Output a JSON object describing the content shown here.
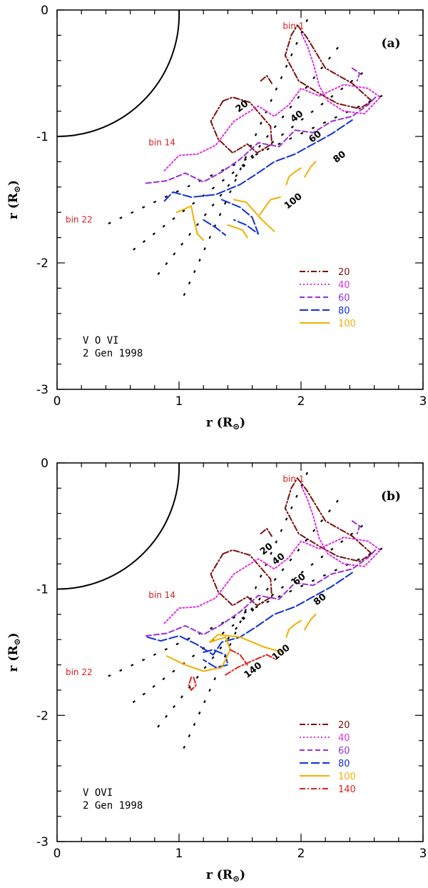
{
  "chart_data": [
    {
      "type": "line",
      "panel_label": "(a)",
      "xlabel": "r (R",
      "ylabel": "r (R",
      "label_sub": "⊙",
      "xlim": [
        0,
        3
      ],
      "ylim": [
        -3,
        0
      ],
      "xticks": [
        "0",
        "1",
        "2",
        "3"
      ],
      "yticks": [
        "0",
        "-1",
        "-2",
        "-3"
      ],
      "annotation": [
        "V O VI",
        "2 Gen 1998"
      ],
      "bin_labels": [
        {
          "text": "bin 1",
          "x": 1.85,
          "y": -0.15
        },
        {
          "text": "bin 14",
          "x": 0.75,
          "y": -1.07
        },
        {
          "text": "bin 22",
          "x": 0.07,
          "y": -1.68
        }
      ],
      "contour_labels": [
        {
          "text": "20",
          "x": 1.53,
          "y": -0.78
        },
        {
          "text": "40",
          "x": 1.98,
          "y": -0.86
        },
        {
          "text": "60",
          "x": 2.13,
          "y": -1.02
        },
        {
          "text": "80",
          "x": 2.33,
          "y": -1.18
        },
        {
          "text": "100",
          "x": 1.95,
          "y": -1.53
        }
      ],
      "series": [
        {
          "name": "20",
          "color": "#7a1010",
          "dash": "8 3 2 3",
          "x": [
            1.97,
            2.05,
            2.2,
            2.42,
            2.58,
            2.48,
            2.3,
            2.15,
            1.98,
            1.87,
            1.92,
            1.97
          ],
          "y": [
            -0.12,
            -0.22,
            -0.46,
            -0.58,
            -0.72,
            -0.78,
            -0.74,
            -0.66,
            -0.56,
            -0.36,
            -0.2,
            -0.12
          ]
        },
        {
          "name": "20",
          "color": "#7a1010",
          "dash": "8 3 2 3",
          "x": [
            1.36,
            1.44,
            1.58,
            1.75,
            1.76,
            1.64,
            1.56,
            1.44,
            1.32,
            1.26,
            1.36
          ],
          "y": [
            -0.72,
            -0.69,
            -0.73,
            -0.92,
            -1.06,
            -1.13,
            -1.06,
            -1.13,
            -1.02,
            -0.88,
            -0.72
          ]
        },
        {
          "name": "20",
          "color": "#7a1010",
          "dash": "8 3 2 3",
          "x": [
            1.67,
            1.72,
            1.76
          ],
          "y": [
            -0.56,
            -0.52,
            -0.58
          ]
        },
        {
          "name": "40",
          "color": "#e030e0",
          "dash": "2 3",
          "x": [
            0.88,
            1.0,
            1.15,
            1.3,
            1.45,
            1.65,
            1.78,
            1.9,
            2.0,
            2.15,
            2.35,
            2.55,
            2.65,
            2.52,
            2.35,
            2.22,
            2.15,
            2.1,
            2.05,
            2.0
          ],
          "y": [
            -1.27,
            -1.15,
            -1.14,
            -1.07,
            -0.88,
            -0.76,
            -0.84,
            -0.75,
            -0.62,
            -0.68,
            -0.59,
            -0.62,
            -0.69,
            -0.82,
            -0.8,
            -0.72,
            -0.6,
            -0.42,
            -0.28,
            -0.18
          ]
        },
        {
          "name": "60",
          "color": "#9a30d8",
          "dash": "7 4",
          "x": [
            0.73,
            0.9,
            1.05,
            1.2,
            1.35,
            1.5,
            1.65,
            1.82,
            1.95,
            2.1,
            2.25,
            2.42,
            2.55,
            2.62
          ],
          "y": [
            -1.37,
            -1.35,
            -1.29,
            -1.36,
            -1.28,
            -1.18,
            -1.05,
            -1.08,
            -0.95,
            -0.97,
            -0.88,
            -0.84,
            -0.75,
            -0.68
          ]
        },
        {
          "name": "60",
          "color": "#9a30d8",
          "dash": "7 4",
          "x": [
            2.42,
            2.48,
            2.46
          ],
          "y": [
            -0.46,
            -0.5,
            -0.56
          ]
        },
        {
          "name": "80",
          "color": "#1030d8",
          "dash": "12 4",
          "x": [
            0.88,
            0.95,
            1.1,
            1.3,
            1.5,
            1.63,
            1.78,
            1.95,
            2.1,
            2.25,
            2.42
          ],
          "y": [
            -1.51,
            -1.44,
            -1.48,
            -1.46,
            -1.38,
            -1.3,
            -1.2,
            -1.14,
            -1.06,
            -0.98,
            -0.87
          ]
        },
        {
          "name": "80",
          "color": "#1030d8",
          "dash": "12 4",
          "x": [
            1.35,
            1.5,
            1.6,
            1.65,
            1.55,
            1.45
          ],
          "y": [
            -1.5,
            -1.56,
            -1.64,
            -1.77,
            -1.7,
            -1.66
          ]
        },
        {
          "name": "80",
          "color": "#1030d8",
          "dash": "12 4",
          "x": [
            1.2,
            1.3,
            1.38
          ],
          "y": [
            -1.66,
            -1.72,
            -1.78
          ]
        },
        {
          "name": "100",
          "color": "#f0b000",
          "dash": "",
          "x": [
            0.98,
            1.1,
            1.12,
            1.15,
            1.2
          ],
          "y": [
            -1.6,
            -1.55,
            -1.65,
            -1.77,
            -1.82
          ]
        },
        {
          "name": "100",
          "color": "#f0b000",
          "dash": "",
          "x": [
            1.45,
            1.55,
            1.68,
            1.78
          ],
          "y": [
            -1.5,
            -1.52,
            -1.66,
            -1.75
          ]
        },
        {
          "name": "100",
          "color": "#f0b000",
          "dash": "",
          "x": [
            1.66,
            1.75,
            1.83
          ],
          "y": [
            -1.62,
            -1.5,
            -1.48
          ]
        },
        {
          "name": "100",
          "color": "#f0b000",
          "dash": "",
          "x": [
            1.4,
            1.52,
            1.56
          ],
          "y": [
            -1.7,
            -1.74,
            -1.8
          ]
        },
        {
          "name": "100",
          "color": "#f0b000",
          "dash": "",
          "x": [
            1.88,
            1.9,
            1.95,
            2.0
          ],
          "y": [
            -1.38,
            -1.32,
            -1.28,
            -1.25
          ]
        },
        {
          "name": "100",
          "color": "#f0b000",
          "dash": "",
          "x": [
            2.03,
            2.08,
            2.12
          ],
          "y": [
            -1.32,
            -1.24,
            -1.2
          ]
        }
      ],
      "grid_lines": [
        {
          "x0": 2.05,
          "y0": -0.08,
          "x1": 1.02,
          "y1": -2.3
        },
        {
          "x0": 2.3,
          "y0": -0.3,
          "x1": 0.82,
          "y1": -2.1
        },
        {
          "x0": 2.5,
          "y0": -0.5,
          "x1": 0.62,
          "y1": -1.9
        },
        {
          "x0": 2.66,
          "y0": -0.68,
          "x1": 0.42,
          "y1": -1.69
        }
      ],
      "legend": [
        {
          "label": "20",
          "color": "#7a1010",
          "dash": "8 3 2 3"
        },
        {
          "label": "40",
          "color": "#e030e0",
          "dash": "2 3"
        },
        {
          "label": "60",
          "color": "#9a30d8",
          "dash": "7 4"
        },
        {
          "label": "80",
          "color": "#1030d8",
          "dash": "12 4"
        },
        {
          "label": "100",
          "color": "#f0b000",
          "dash": ""
        }
      ]
    },
    {
      "type": "line",
      "panel_label": "(b)",
      "xlabel": "r (R",
      "ylabel": "r (R",
      "label_sub": "⊙",
      "xlim": [
        0,
        3
      ],
      "ylim": [
        -3,
        0
      ],
      "xticks": [
        "0",
        "1",
        "2",
        "3"
      ],
      "yticks": [
        "0",
        "-1",
        "-2",
        "-3"
      ],
      "annotation": [
        "V OVI",
        "2 Gen 1998"
      ],
      "bin_labels": [
        {
          "text": "bin 1",
          "x": 1.85,
          "y": -0.15
        },
        {
          "text": "bin 14",
          "x": 0.75,
          "y": -1.07
        },
        {
          "text": "bin 22",
          "x": 0.07,
          "y": -1.68
        }
      ],
      "contour_labels": [
        {
          "text": "20",
          "x": 1.73,
          "y": -0.7
        },
        {
          "text": "40",
          "x": 1.83,
          "y": -0.78
        },
        {
          "text": "60",
          "x": 2.0,
          "y": -0.94
        },
        {
          "text": "80",
          "x": 2.17,
          "y": -1.1
        },
        {
          "text": "100",
          "x": 1.85,
          "y": -1.52
        },
        {
          "text": "140",
          "x": 1.62,
          "y": -1.66
        }
      ],
      "series": [
        {
          "name": "20",
          "color": "#7a1010",
          "dash": "8 3 2 3",
          "x": [
            1.97,
            2.05,
            2.2,
            2.42,
            2.58,
            2.48,
            2.3,
            2.15,
            1.98,
            1.87,
            1.92,
            1.97
          ],
          "y": [
            -0.12,
            -0.22,
            -0.46,
            -0.58,
            -0.72,
            -0.78,
            -0.74,
            -0.66,
            -0.56,
            -0.36,
            -0.2,
            -0.12
          ]
        },
        {
          "name": "20",
          "color": "#7a1010",
          "dash": "8 3 2 3",
          "x": [
            1.36,
            1.44,
            1.58,
            1.75,
            1.76,
            1.64,
            1.56,
            1.44,
            1.32,
            1.26,
            1.36
          ],
          "y": [
            -0.72,
            -0.69,
            -0.73,
            -0.92,
            -1.06,
            -1.13,
            -1.06,
            -1.13,
            -1.02,
            -0.88,
            -0.72
          ]
        },
        {
          "name": "20",
          "color": "#7a1010",
          "dash": "8 3 2 3",
          "x": [
            1.67,
            1.72,
            1.76
          ],
          "y": [
            -0.56,
            -0.52,
            -0.58
          ]
        },
        {
          "name": "40",
          "color": "#e030e0",
          "dash": "2 3",
          "x": [
            0.88,
            1.0,
            1.15,
            1.3,
            1.45,
            1.65,
            1.78,
            1.9,
            2.0,
            2.15,
            2.35,
            2.55,
            2.65,
            2.52,
            2.35,
            2.22,
            2.15,
            2.1,
            2.05,
            2.0
          ],
          "y": [
            -1.27,
            -1.15,
            -1.14,
            -1.07,
            -0.88,
            -0.76,
            -0.84,
            -0.75,
            -0.62,
            -0.68,
            -0.59,
            -0.62,
            -0.69,
            -0.82,
            -0.8,
            -0.72,
            -0.6,
            -0.42,
            -0.28,
            -0.18
          ]
        },
        {
          "name": "60",
          "color": "#9a30d8",
          "dash": "7 4",
          "x": [
            0.73,
            0.9,
            1.05,
            1.2,
            1.35,
            1.5,
            1.65,
            1.82,
            1.95,
            2.1,
            2.25,
            2.42,
            2.55,
            2.62
          ],
          "y": [
            -1.37,
            -1.35,
            -1.29,
            -1.36,
            -1.28,
            -1.18,
            -1.05,
            -1.08,
            -0.95,
            -0.97,
            -0.88,
            -0.84,
            -0.75,
            -0.68
          ]
        },
        {
          "name": "60",
          "color": "#9a30d8",
          "dash": "7 4",
          "x": [
            2.42,
            2.48,
            2.46
          ],
          "y": [
            -0.46,
            -0.5,
            -0.56
          ]
        },
        {
          "name": "80",
          "color": "#1030d8",
          "dash": "12 4",
          "x": [
            0.74,
            0.85,
            1.0,
            1.15,
            1.28,
            1.35,
            1.5,
            1.63,
            1.78,
            1.95,
            2.1,
            2.25,
            2.42
          ],
          "y": [
            -1.38,
            -1.41,
            -1.37,
            -1.44,
            -1.52,
            -1.42,
            -1.38,
            -1.3,
            -1.2,
            -1.14,
            -1.06,
            -0.98,
            -0.87
          ]
        },
        {
          "name": "80",
          "color": "#1030d8",
          "dash": "12 4",
          "x": [
            1.2,
            1.28,
            1.38,
            1.4,
            1.3,
            1.2
          ],
          "y": [
            -1.5,
            -1.48,
            -1.52,
            -1.6,
            -1.62,
            -1.56
          ]
        },
        {
          "name": "100",
          "color": "#f0b000",
          "dash": "",
          "x": [
            0.9,
            1.05,
            1.2,
            1.35,
            1.42,
            1.38,
            1.25,
            1.32,
            1.5,
            1.7,
            1.85
          ],
          "y": [
            -1.53,
            -1.6,
            -1.65,
            -1.62,
            -1.48,
            -1.38,
            -1.42,
            -1.36,
            -1.38,
            -1.46,
            -1.5
          ]
        },
        {
          "name": "100",
          "color": "#f0b000",
          "dash": "",
          "x": [
            1.88,
            1.9,
            1.95,
            2.0
          ],
          "y": [
            -1.38,
            -1.32,
            -1.28,
            -1.25
          ]
        },
        {
          "name": "100",
          "color": "#f0b000",
          "dash": "",
          "x": [
            2.03,
            2.08,
            2.12
          ],
          "y": [
            -1.32,
            -1.24,
            -1.2
          ]
        },
        {
          "name": "140",
          "color": "#e02020",
          "dash": "8 3 2 3",
          "x": [
            1.38,
            1.48,
            1.62,
            1.72,
            1.78
          ],
          "y": [
            -1.68,
            -1.62,
            -1.56,
            -1.52,
            -1.55
          ]
        },
        {
          "name": "140",
          "color": "#e02020",
          "dash": "8 3 2 3",
          "x": [
            1.42,
            1.5,
            1.56
          ],
          "y": [
            -1.48,
            -1.52,
            -1.6
          ]
        },
        {
          "name": "140",
          "color": "#e02020",
          "dash": "8 3 2 3",
          "x": [
            1.1,
            1.08,
            1.1,
            1.14,
            1.12,
            1.1
          ],
          "y": [
            -1.7,
            -1.76,
            -1.8,
            -1.76,
            -1.7,
            -1.7
          ]
        }
      ],
      "grid_lines": [
        {
          "x0": 2.05,
          "y0": -0.08,
          "x1": 1.02,
          "y1": -2.3
        },
        {
          "x0": 2.3,
          "y0": -0.3,
          "x1": 0.82,
          "y1": -2.1
        },
        {
          "x0": 2.5,
          "y0": -0.5,
          "x1": 0.62,
          "y1": -1.9
        },
        {
          "x0": 2.66,
          "y0": -0.68,
          "x1": 0.42,
          "y1": -1.69
        }
      ],
      "legend": [
        {
          "label": "20",
          "color": "#7a1010",
          "dash": "8 3 2 3"
        },
        {
          "label": "40",
          "color": "#e030e0",
          "dash": "2 3"
        },
        {
          "label": "60",
          "color": "#9a30d8",
          "dash": "7 4"
        },
        {
          "label": "80",
          "color": "#1030d8",
          "dash": "12 4"
        },
        {
          "label": "100",
          "color": "#f0b000",
          "dash": ""
        },
        {
          "label": "140",
          "color": "#e02020",
          "dash": "8 3 2 3"
        }
      ]
    }
  ]
}
